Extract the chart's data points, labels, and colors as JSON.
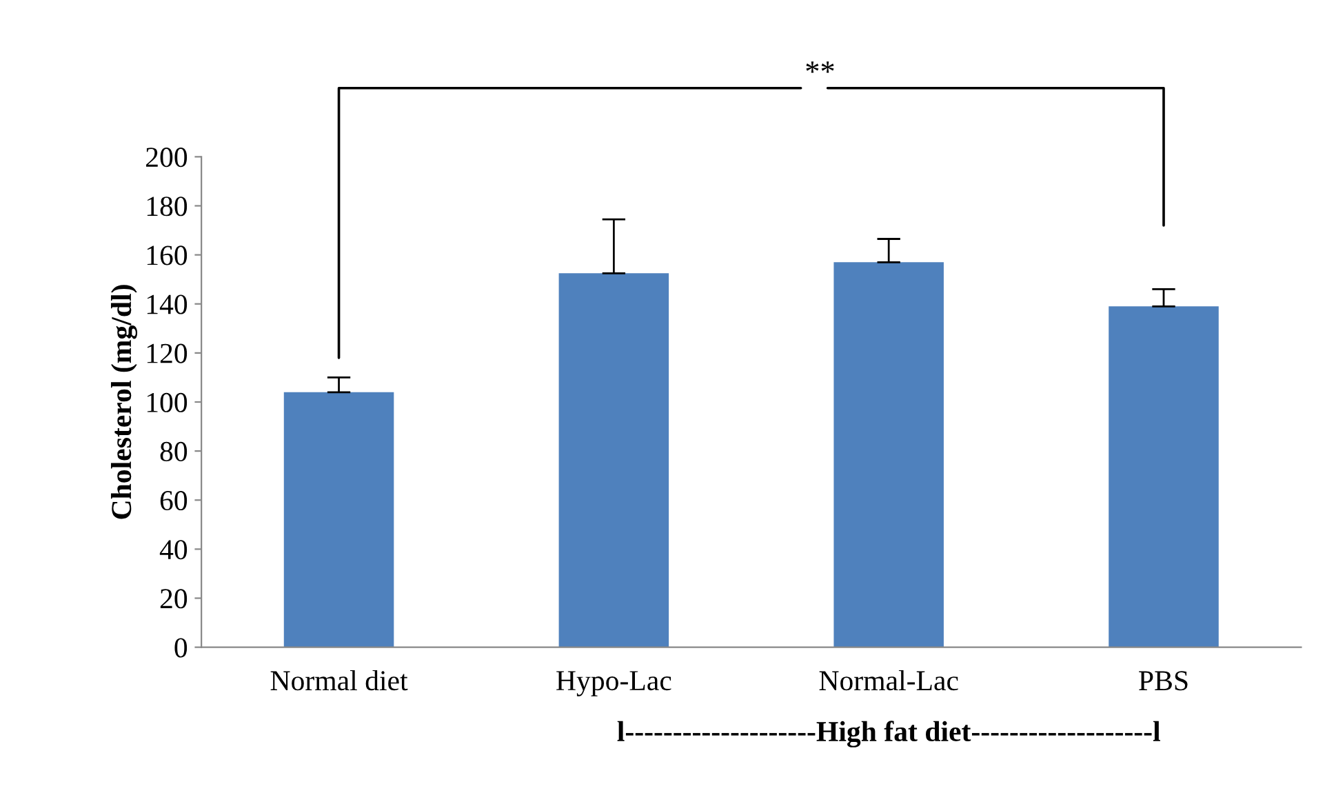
{
  "chart_data": {
    "type": "bar",
    "ylabel": "Cholesterol (mg/dl)",
    "categories": [
      "Normal diet",
      "Hypo-Lac",
      "Normal-Lac",
      "PBS"
    ],
    "values": [
      104,
      152.5,
      157,
      139
    ],
    "errors": [
      [
        104,
        110
      ],
      [
        152.5,
        174.5
      ],
      [
        157,
        166.5
      ],
      [
        139,
        146
      ]
    ],
    "color": "#4f81bd",
    "ylim": [
      0,
      200
    ],
    "yticks": [
      0,
      20,
      40,
      60,
      80,
      100,
      120,
      140,
      160,
      180,
      200
    ],
    "grid": false,
    "legend": false,
    "annotations": [
      "**",
      "l--------------------High fat diet-------------------l"
    ]
  }
}
